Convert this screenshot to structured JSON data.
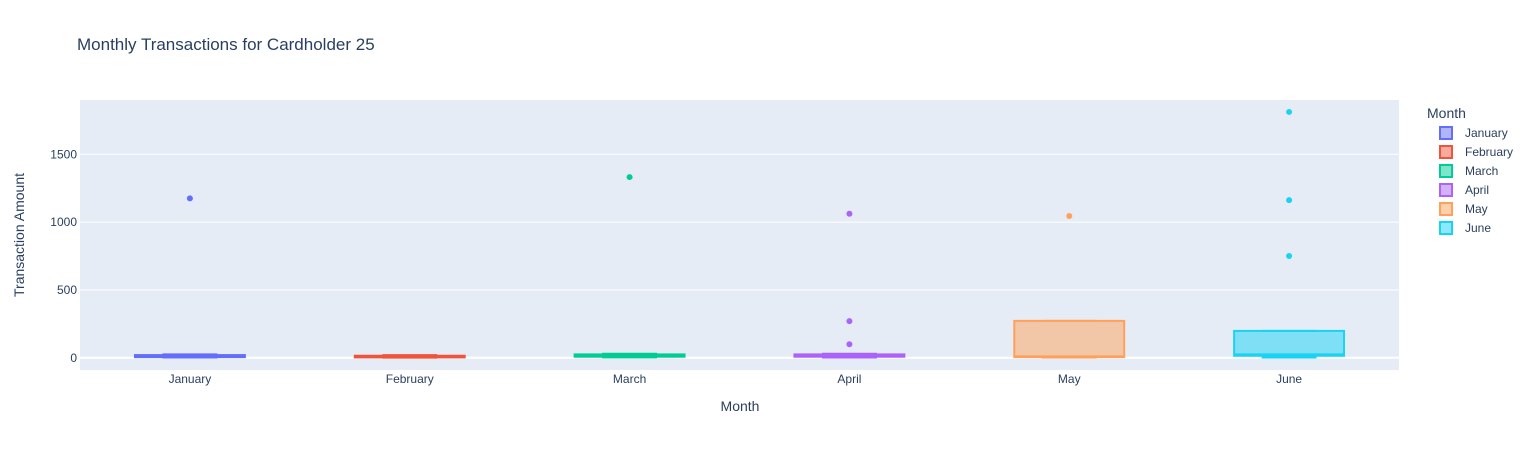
{
  "chart_data": {
    "type": "box",
    "title": "Monthly Transactions for Cardholder 25",
    "xlabel": "Month",
    "ylabel": "Transaction Amount",
    "categories": [
      "January",
      "February",
      "March",
      "April",
      "May",
      "June"
    ],
    "ylim": [
      -90,
      1900
    ],
    "yticks": [
      0,
      500,
      1000,
      1500
    ],
    "grid": true,
    "legend": {
      "title": "Month",
      "placement": "right"
    },
    "series": [
      {
        "name": "January",
        "color": "#636efa",
        "q1": 5,
        "median": 12,
        "q3": 20,
        "whisker_low": 2,
        "whisker_high": 25,
        "outliers": [
          1175
        ]
      },
      {
        "name": "February",
        "color": "#ef553b",
        "q1": 3,
        "median": 8,
        "q3": 15,
        "whisker_low": 1,
        "whisker_high": 20,
        "outliers": []
      },
      {
        "name": "March",
        "color": "#00cc96",
        "q1": 8,
        "median": 15,
        "q3": 25,
        "whisker_low": 3,
        "whisker_high": 30,
        "outliers": [
          1332
        ]
      },
      {
        "name": "April",
        "color": "#ab63fa",
        "q1": 8,
        "median": 15,
        "q3": 25,
        "whisker_low": 2,
        "whisker_high": 30,
        "outliers": [
          100,
          270,
          1062
        ]
      },
      {
        "name": "May",
        "color": "#ffa15a",
        "q1": 5,
        "median": 10,
        "q3": 272,
        "whisker_low": 2,
        "whisker_high": 272,
        "outliers": [
          1045
        ]
      },
      {
        "name": "June",
        "color": "#19d3f3",
        "q1": 15,
        "median": 25,
        "q3": 198,
        "whisker_low": 2,
        "whisker_high": 198,
        "outliers": [
          750,
          1162,
          1812
        ]
      }
    ]
  }
}
